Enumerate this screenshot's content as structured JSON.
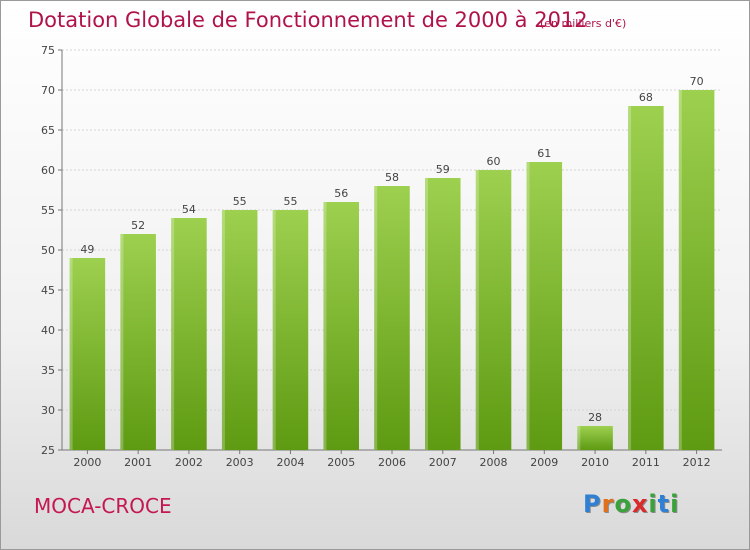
{
  "header": {
    "title": "Dotation Globale de Fonctionnement de 2000 à 2012",
    "unit": "(en milliers d'€)"
  },
  "footer": {
    "commune": "MOCA-CROCE",
    "logo_letters": [
      "P",
      "r",
      "o",
      "x",
      "i",
      "t",
      "i"
    ]
  },
  "colors": {
    "bar_top": "#9dd04f",
    "bar_bottom": "#5e9a12",
    "title": "#b0134a",
    "logo": [
      "#2f7fd4",
      "#e0701b",
      "#3aa23a",
      "#d92b2b",
      "#3aa23a",
      "#2f7fd4",
      "#3aa23a"
    ]
  },
  "chart_data": {
    "type": "bar",
    "title": "Dotation Globale de Fonctionnement de 2000 à 2012",
    "categories": [
      "2000",
      "2001",
      "2002",
      "2003",
      "2004",
      "2005",
      "2006",
      "2007",
      "2008",
      "2009",
      "2010",
      "2011",
      "2012"
    ],
    "values": [
      49,
      52,
      54,
      55,
      55,
      56,
      58,
      59,
      60,
      61,
      28,
      68,
      70
    ],
    "ylim": [
      25,
      75
    ],
    "yticks": [
      25,
      30,
      35,
      40,
      45,
      50,
      55,
      60,
      65,
      70,
      75
    ],
    "grid": true,
    "xlabel": "",
    "ylabel": ""
  }
}
